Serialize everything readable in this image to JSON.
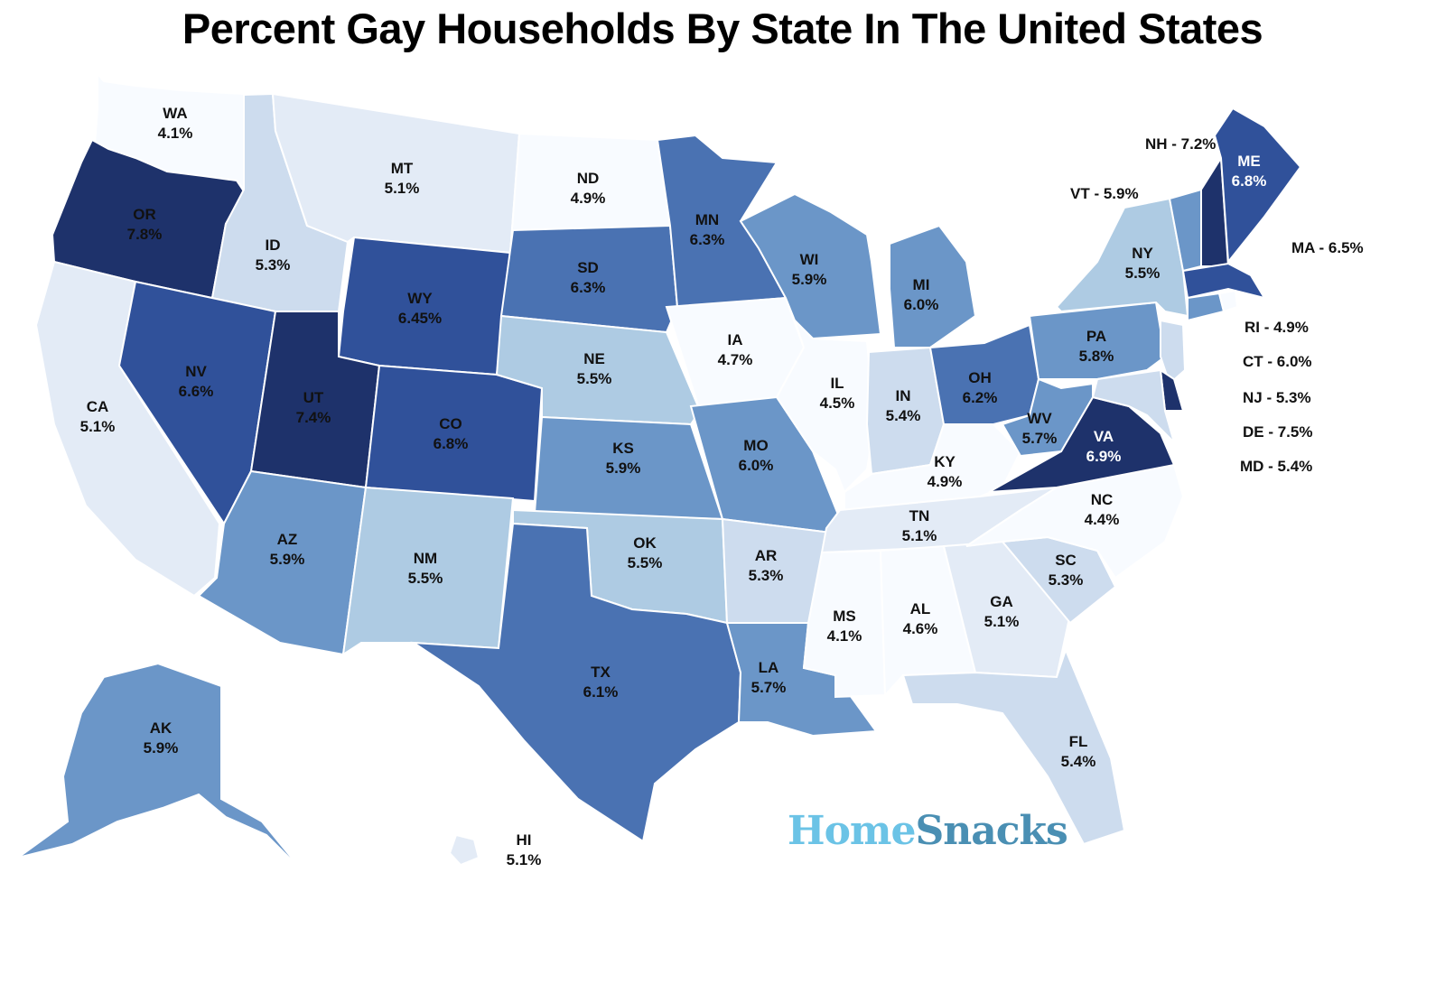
{
  "title": "Percent Gay Households By State In The United States",
  "brand": {
    "part1": "Home",
    "part2": "Snacks"
  },
  "colors": {
    "c1": "#f8fbff",
    "c2": "#e3ebf6",
    "c3": "#cddcee",
    "c4": "#aecbe3",
    "c5": "#6b96c8",
    "c6": "#4a72b2",
    "c7": "#30519a",
    "c8": "#1e326b"
  },
  "states": [
    {
      "abbr": "WA",
      "value": "4.1%",
      "shade": "c1"
    },
    {
      "abbr": "OR",
      "value": "7.8%",
      "shade": "c8"
    },
    {
      "abbr": "CA",
      "value": "5.1%",
      "shade": "c2"
    },
    {
      "abbr": "ID",
      "value": "5.3%",
      "shade": "c3"
    },
    {
      "abbr": "NV",
      "value": "6.6%",
      "shade": "c7"
    },
    {
      "abbr": "MT",
      "value": "5.1%",
      "shade": "c2"
    },
    {
      "abbr": "WY",
      "value": "6.45%",
      "shade": "c7"
    },
    {
      "abbr": "UT",
      "value": "7.4%",
      "shade": "c8"
    },
    {
      "abbr": "CO",
      "value": "6.8%",
      "shade": "c7"
    },
    {
      "abbr": "AZ",
      "value": "5.9%",
      "shade": "c5"
    },
    {
      "abbr": "NM",
      "value": "5.5%",
      "shade": "c4"
    },
    {
      "abbr": "ND",
      "value": "4.9%",
      "shade": "c1"
    },
    {
      "abbr": "SD",
      "value": "6.3%",
      "shade": "c6"
    },
    {
      "abbr": "NE",
      "value": "5.5%",
      "shade": "c4"
    },
    {
      "abbr": "KS",
      "value": "5.9%",
      "shade": "c5"
    },
    {
      "abbr": "OK",
      "value": "5.5%",
      "shade": "c4"
    },
    {
      "abbr": "TX",
      "value": "6.1%",
      "shade": "c6"
    },
    {
      "abbr": "MN",
      "value": "6.3%",
      "shade": "c6"
    },
    {
      "abbr": "IA",
      "value": "4.7%",
      "shade": "c1"
    },
    {
      "abbr": "MO",
      "value": "6.0%",
      "shade": "c5"
    },
    {
      "abbr": "AR",
      "value": "5.3%",
      "shade": "c3"
    },
    {
      "abbr": "LA",
      "value": "5.7%",
      "shade": "c5"
    },
    {
      "abbr": "WI",
      "value": "5.9%",
      "shade": "c5"
    },
    {
      "abbr": "IL",
      "value": "4.5%",
      "shade": "c1"
    },
    {
      "abbr": "MI",
      "value": "6.0%",
      "shade": "c5"
    },
    {
      "abbr": "IN",
      "value": "5.4%",
      "shade": "c3"
    },
    {
      "abbr": "OH",
      "value": "6.2%",
      "shade": "c6"
    },
    {
      "abbr": "KY",
      "value": "4.9%",
      "shade": "c1"
    },
    {
      "abbr": "TN",
      "value": "5.1%",
      "shade": "c2"
    },
    {
      "abbr": "MS",
      "value": "4.1%",
      "shade": "c1"
    },
    {
      "abbr": "AL",
      "value": "4.6%",
      "shade": "c1"
    },
    {
      "abbr": "GA",
      "value": "5.1%",
      "shade": "c2"
    },
    {
      "abbr": "FL",
      "value": "5.4%",
      "shade": "c3"
    },
    {
      "abbr": "SC",
      "value": "5.3%",
      "shade": "c3"
    },
    {
      "abbr": "NC",
      "value": "4.4%",
      "shade": "c1"
    },
    {
      "abbr": "VA",
      "value": "6.9%",
      "shade": "c8"
    },
    {
      "abbr": "WV",
      "value": "5.7%",
      "shade": "c5"
    },
    {
      "abbr": "PA",
      "value": "5.8%",
      "shade": "c5"
    },
    {
      "abbr": "NY",
      "value": "5.5%",
      "shade": "c4"
    },
    {
      "abbr": "ME",
      "value": "6.8%",
      "shade": "c7"
    },
    {
      "abbr": "AK",
      "value": "5.9%",
      "shade": "c5"
    },
    {
      "abbr": "HI",
      "value": "5.1%",
      "shade": "c2"
    },
    {
      "abbr": "NH",
      "value": "7.2%",
      "shade": "c8"
    },
    {
      "abbr": "VT",
      "value": "5.9%",
      "shade": "c5"
    },
    {
      "abbr": "MA",
      "value": "6.5%",
      "shade": "c7"
    },
    {
      "abbr": "RI",
      "value": "4.9%",
      "shade": "c1"
    },
    {
      "abbr": "CT",
      "value": "6.0%",
      "shade": "c5"
    },
    {
      "abbr": "NJ",
      "value": "5.3%",
      "shade": "c3"
    },
    {
      "abbr": "DE",
      "value": "7.5%",
      "shade": "c8"
    },
    {
      "abbr": "MD",
      "value": "5.4%",
      "shade": "c3"
    }
  ],
  "side_labels": [
    "NH - 7.2%",
    "VT - 5.9%",
    "MA - 6.5%",
    "RI - 4.9%",
    "CT - 6.0%",
    "NJ - 5.3%",
    "DE - 7.5%",
    "MD - 5.4%"
  ]
}
